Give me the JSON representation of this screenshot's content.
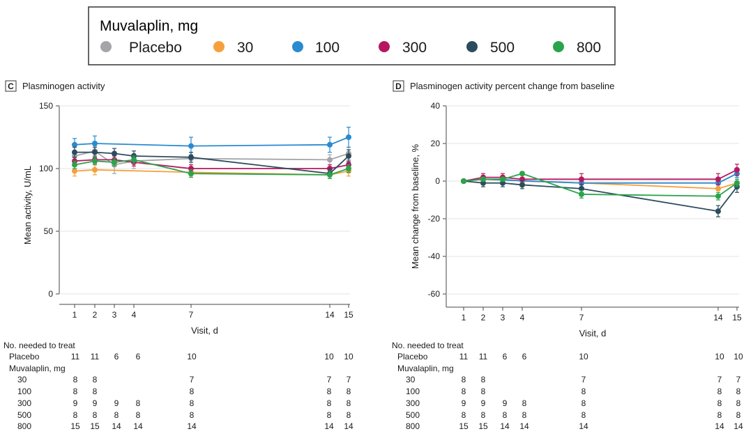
{
  "legend": {
    "title": "Muvalaplin, mg",
    "entries": [
      {
        "label": "Placebo",
        "color": "#a3a5a8"
      },
      {
        "label": "30",
        "color": "#f5a03c"
      },
      {
        "label": "100",
        "color": "#2a8ad0"
      },
      {
        "label": "300",
        "color": "#b6185f"
      },
      {
        "label": "500",
        "color": "#2b4c5c"
      },
      {
        "label": "800",
        "color": "#2aa44b"
      }
    ]
  },
  "chart_data": [
    {
      "type": "line",
      "panel_letter": "C",
      "title": "Plasminogen activity",
      "xlabel": "Visit, d",
      "ylabel": "Mean activity, U/mL",
      "x": [
        1,
        2,
        3,
        4,
        7,
        14,
        15
      ],
      "ylim": [
        0,
        150
      ],
      "yticks": [
        0,
        50,
        100,
        150
      ],
      "series": [
        {
          "name": "Placebo",
          "x": [
            1,
            2,
            3,
            4,
            7,
            14,
            15
          ],
          "values": [
            110,
            114,
            103,
            106,
            108,
            107,
            112
          ],
          "err": [
            4,
            4,
            7,
            6,
            5,
            4,
            5
          ]
        },
        {
          "name": "30",
          "x": [
            1,
            2,
            7,
            14,
            15
          ],
          "values": [
            98,
            99,
            97,
            95,
            98
          ],
          "err": [
            4,
            4,
            3,
            3,
            4
          ]
        },
        {
          "name": "100",
          "x": [
            1,
            2,
            7,
            14,
            15
          ],
          "values": [
            119,
            120,
            118,
            119,
            125
          ],
          "err": [
            5,
            6,
            7,
            6,
            8
          ]
        },
        {
          "name": "300",
          "x": [
            1,
            2,
            3,
            4,
            7,
            14,
            15
          ],
          "values": [
            106,
            107,
            107,
            105,
            100,
            100,
            103
          ],
          "err": [
            3,
            3,
            3,
            3,
            3,
            3,
            3
          ]
        },
        {
          "name": "500",
          "x": [
            1,
            2,
            3,
            4,
            7,
            14,
            15
          ],
          "values": [
            113,
            113,
            112,
            110,
            109,
            96,
            110
          ],
          "err": [
            4,
            4,
            4,
            4,
            4,
            4,
            5
          ]
        },
        {
          "name": "800",
          "x": [
            1,
            2,
            3,
            4,
            7,
            14,
            15
          ],
          "values": [
            103,
            106,
            105,
            107,
            96,
            95,
            100
          ],
          "err": [
            3,
            3,
            3,
            3,
            3,
            3,
            3
          ]
        }
      ]
    },
    {
      "type": "line",
      "panel_letter": "D",
      "title": "Plasminogen activity percent change from baseline",
      "xlabel": "Visit, d",
      "ylabel": "Mean change from baseline, %",
      "x": [
        1,
        2,
        3,
        4,
        7,
        14,
        15
      ],
      "ylim": [
        -67,
        40
      ],
      "yticks": [
        -60,
        -40,
        -20,
        0,
        20,
        40
      ],
      "series": [
        {
          "name": "Placebo",
          "x": [
            1,
            2,
            3,
            4,
            7,
            14,
            15
          ],
          "values": [
            0,
            1,
            1,
            0,
            -1,
            -1,
            4
          ],
          "err": [
            0,
            2,
            2,
            2,
            2,
            2,
            3
          ]
        },
        {
          "name": "30",
          "x": [
            1,
            2,
            7,
            14,
            15
          ],
          "values": [
            0,
            1,
            -1,
            -4,
            -1
          ],
          "err": [
            0,
            1,
            1,
            1,
            1
          ]
        },
        {
          "name": "100",
          "x": [
            1,
            2,
            7,
            14,
            15
          ],
          "values": [
            0,
            1,
            -1,
            -1,
            4
          ],
          "err": [
            0,
            1,
            1,
            1,
            2
          ]
        },
        {
          "name": "300",
          "x": [
            1,
            2,
            3,
            4,
            7,
            14,
            15
          ],
          "values": [
            0,
            2,
            2,
            1,
            1,
            1,
            6
          ],
          "err": [
            0,
            2,
            2,
            2,
            3,
            3,
            3
          ]
        },
        {
          "name": "500",
          "x": [
            1,
            2,
            3,
            4,
            7,
            14,
            15
          ],
          "values": [
            0,
            -1,
            -1,
            -2,
            -4,
            -16,
            -3
          ],
          "err": [
            0,
            2,
            2,
            2,
            2,
            3,
            3
          ]
        },
        {
          "name": "800",
          "x": [
            1,
            2,
            3,
            4,
            7,
            14,
            15
          ],
          "values": [
            0,
            1,
            1,
            4,
            -7,
            -8,
            -1
          ],
          "err": [
            0,
            1,
            1,
            1,
            2,
            2,
            2
          ]
        }
      ]
    }
  ],
  "table": {
    "header": "No. needed to treat",
    "drug_label": "Muvalaplin, mg",
    "visits": [
      1,
      2,
      3,
      4,
      7,
      14,
      15
    ],
    "rows": [
      {
        "label": "Placebo",
        "values": [
          "11",
          "11",
          "6",
          "6",
          "10",
          "10",
          "10"
        ]
      },
      {
        "label": "30",
        "values": [
          "8",
          "8",
          "",
          "",
          "7",
          "7",
          "7"
        ]
      },
      {
        "label": "100",
        "values": [
          "8",
          "8",
          "",
          "",
          "8",
          "8",
          "8"
        ]
      },
      {
        "label": "300",
        "values": [
          "9",
          "9",
          "9",
          "8",
          "8",
          "8",
          "8"
        ]
      },
      {
        "label": "500",
        "values": [
          "8",
          "8",
          "8",
          "8",
          "8",
          "8",
          "8"
        ]
      },
      {
        "label": "800",
        "values": [
          "15",
          "15",
          "14",
          "14",
          "14",
          "14",
          "14"
        ]
      }
    ]
  }
}
